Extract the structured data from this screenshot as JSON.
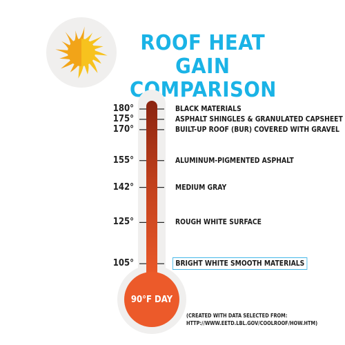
{
  "title": {
    "line1": "ROOF HEAT GAIN",
    "line2": "COMPARISON"
  },
  "colors": {
    "title": "#1ab3e6",
    "thermometer_outer": "#f0efee",
    "mercury_top": "#8a2410",
    "mercury_bottom": "#ec5a2a",
    "sun_left": "#f2a418",
    "sun_right": "#f7c21e",
    "highlight_box": "#42b6e8"
  },
  "thermometer": {
    "bulb_label": "90°F DAY",
    "scale_min": 90,
    "scale_max": 180
  },
  "readings": [
    {
      "temp": 180,
      "temp_label": "180°",
      "material": "BLACK MATERIALS"
    },
    {
      "temp": 175,
      "temp_label": "175°",
      "material": "ASPHALT SHINGLES & GRANULATED CAPSHEET"
    },
    {
      "temp": 170,
      "temp_label": "170°",
      "material": "BUILT-UP ROOF (BUR) COVERED WITH GRAVEL"
    },
    {
      "temp": 155,
      "temp_label": "155°",
      "material": "ALUMINUM-PIGMENTED ASPHALT"
    },
    {
      "temp": 142,
      "temp_label": "142°",
      "material": "MEDIUM GRAY"
    },
    {
      "temp": 125,
      "temp_label": "125°",
      "material": "ROUGH WHITE SURFACE"
    },
    {
      "temp": 105,
      "temp_label": "105°",
      "material": "BRIGHT WHITE SMOOTH MATERIALS",
      "highlighted": true
    }
  ],
  "source": {
    "line1": "(CREATED WITH DATA SELECTED FROM:",
    "line2": "HTTP://WWW.EETD.LBL.GOV/COOLROOF/HOW.HTM)"
  }
}
